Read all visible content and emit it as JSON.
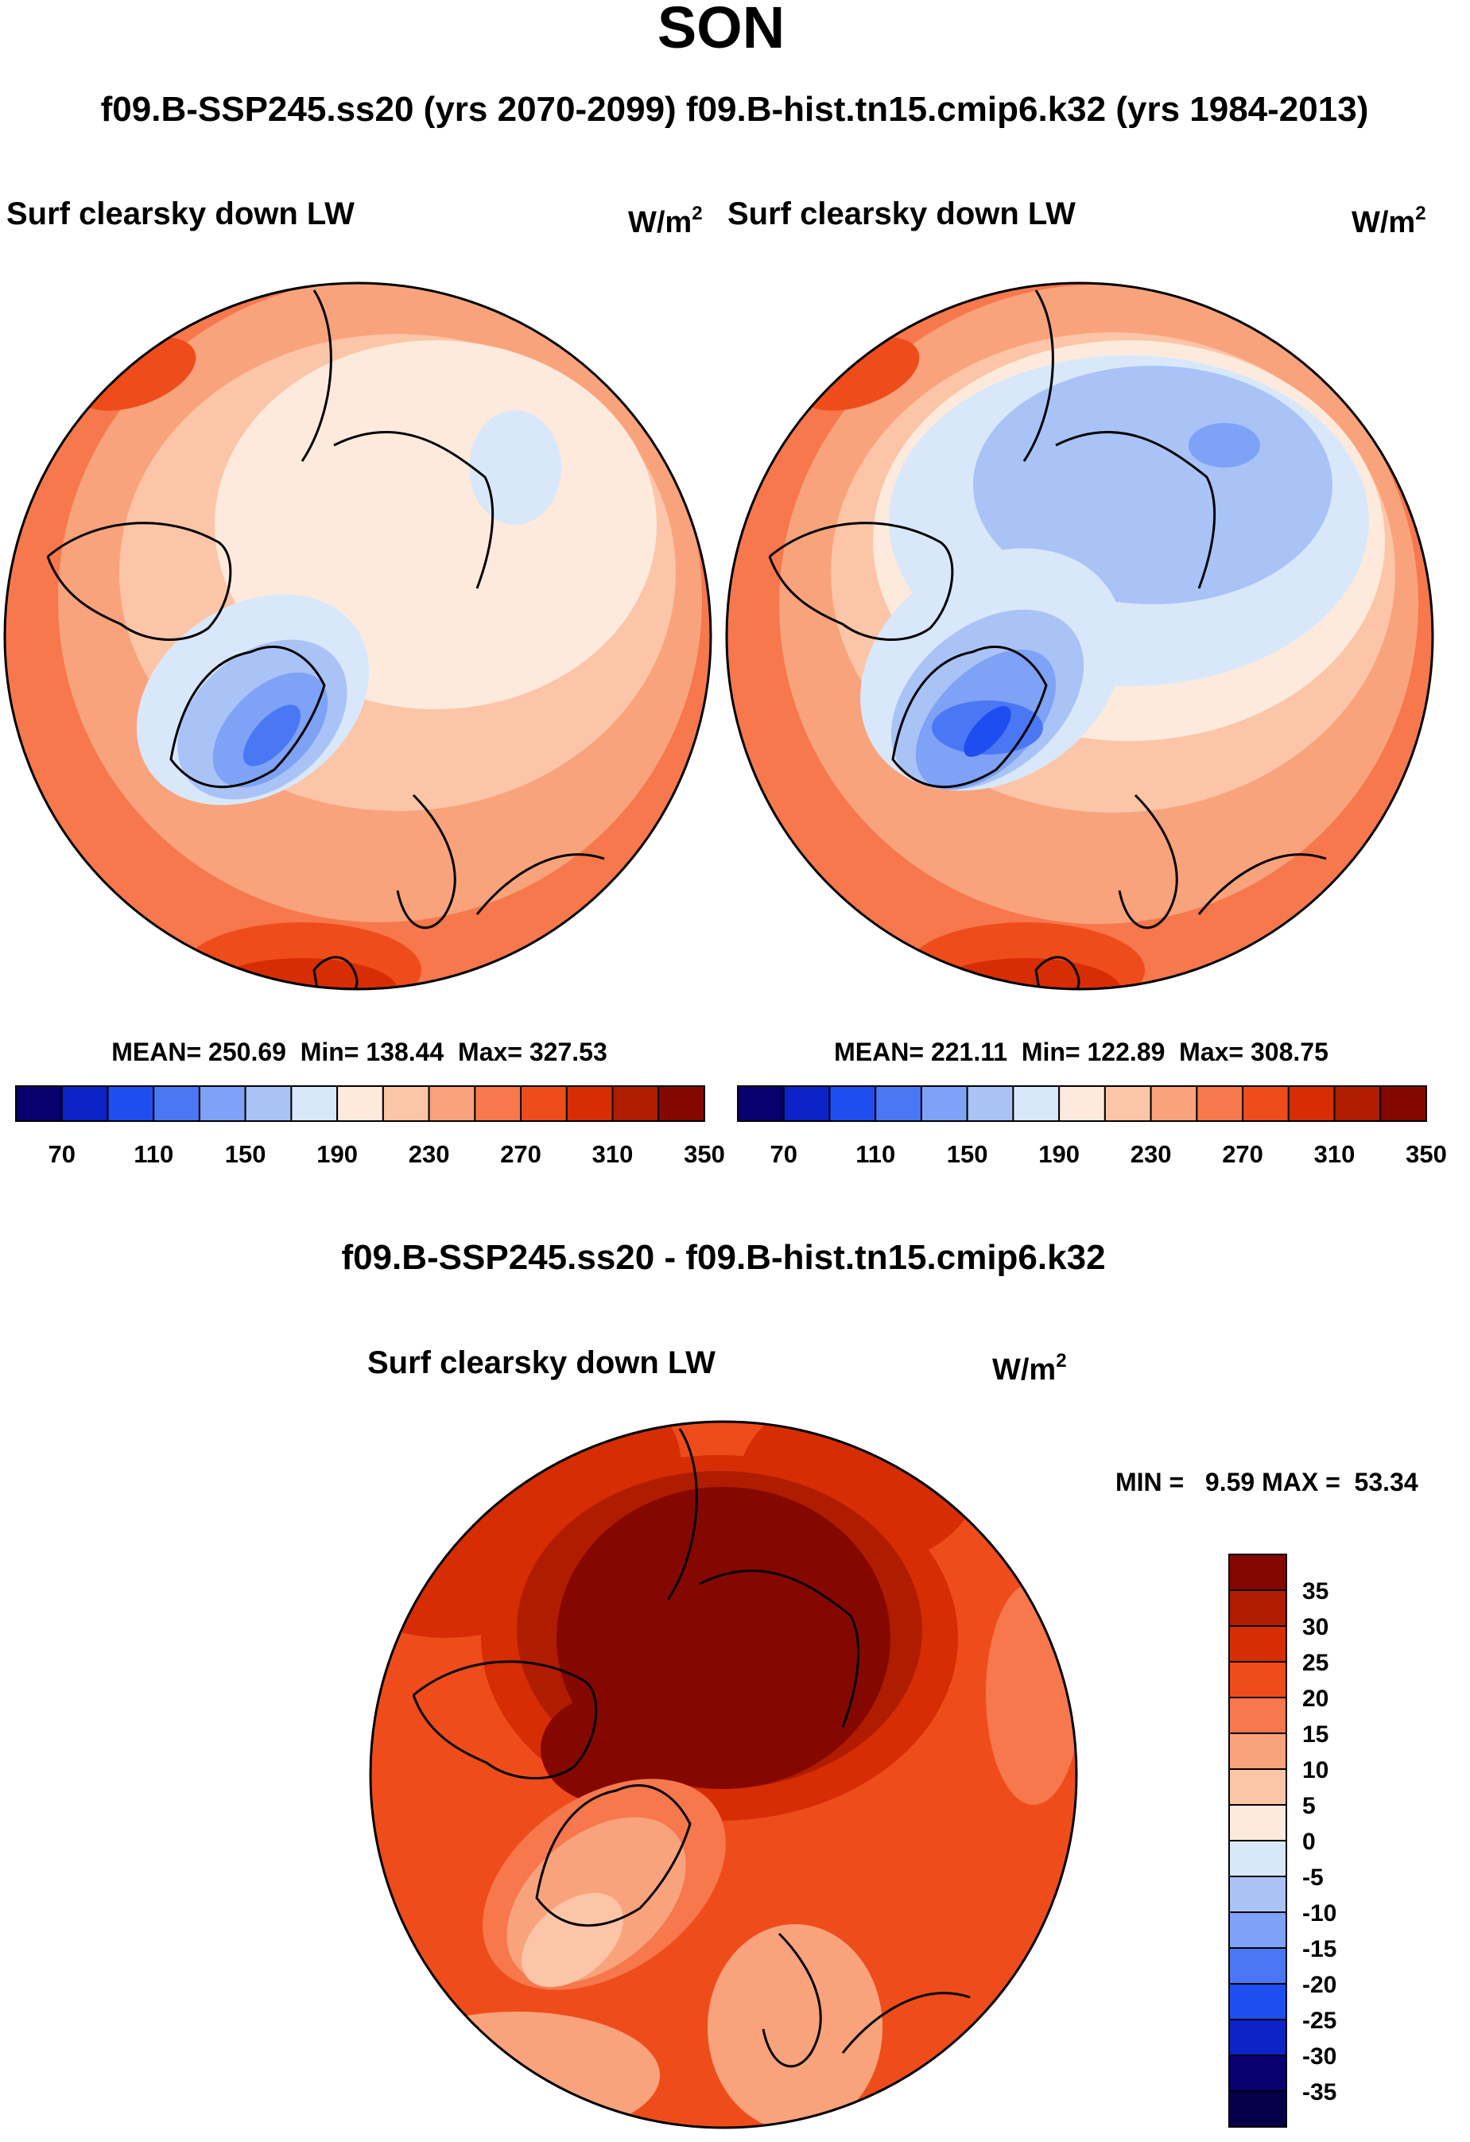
{
  "figure": {
    "season": "SON",
    "subtitle": "f09.B-SSP245.ss20 (yrs 2070-2099)  f09.B-hist.tn15.cmip6.k32 (yrs 1984-2013)",
    "diff_title": "f09.B-SSP245.ss20 - f09.B-hist.tn15.cmip6.k32"
  },
  "chart_data": [
    {
      "type": "heatmap",
      "projection": "north-polar-stereographic",
      "variable": "Surf clearsky down LW",
      "units_base": "W/m",
      "units_exp": "2",
      "case": "f09.B-SSP245.ss20",
      "years": "2070-2099",
      "stats_label": "MEAN= 250.69  Min= 138.44  Max= 327.53",
      "mean": 250.69,
      "min": 138.44,
      "max": 327.53,
      "colorbar_ticks": [
        "70",
        "110",
        "150",
        "190",
        "230",
        "270",
        "310",
        "350"
      ],
      "colorbar_orientation": "horizontal"
    },
    {
      "type": "heatmap",
      "projection": "north-polar-stereographic",
      "variable": "Surf clearsky down LW",
      "units_base": "W/m",
      "units_exp": "2",
      "case": "f09.B-hist.tn15.cmip6.k32",
      "years": "1984-2013",
      "stats_label": "MEAN= 221.11  Min= 122.89  Max= 308.75",
      "mean": 221.11,
      "min": 122.89,
      "max": 308.75,
      "colorbar_ticks": [
        "70",
        "110",
        "150",
        "190",
        "230",
        "270",
        "310",
        "350"
      ],
      "colorbar_orientation": "horizontal"
    },
    {
      "type": "heatmap",
      "projection": "north-polar-stereographic",
      "variable": "Surf clearsky down LW",
      "units_base": "W/m",
      "units_exp": "2",
      "case": "f09.B-SSP245.ss20 - f09.B-hist.tn15.cmip6.k32",
      "stats_label": "MIN =   9.59 MAX =  53.34",
      "min": 9.59,
      "max": 53.34,
      "colorbar_ticks": [
        "35",
        "30",
        "25",
        "20",
        "15",
        "10",
        "5",
        "0",
        "-5",
        "-10",
        "-15",
        "-20",
        "-25",
        "-30",
        "-35"
      ],
      "colorbar_orientation": "vertical"
    }
  ],
  "colors": {
    "abs_palette": [
      "#08006e",
      "#0c23c8",
      "#1e4ef0",
      "#4a78f5",
      "#7ea2f5",
      "#a9c3f7",
      "#d8e8fa",
      "#fdeadd",
      "#fcc5a7",
      "#f9a37c",
      "#f6784c",
      "#ef4c1c",
      "#d62d04",
      "#b01c00",
      "#850800"
    ],
    "diff_palette": [
      "#850800",
      "#b01c00",
      "#d62d04",
      "#ef4c1c",
      "#f6784c",
      "#f9a37c",
      "#fcc5a7",
      "#fdeadd",
      "#d8e8fa",
      "#a9c3f7",
      "#7ea2f5",
      "#4a78f5",
      "#1e4ef0",
      "#0c23c8",
      "#08006e",
      "#060048"
    ]
  }
}
